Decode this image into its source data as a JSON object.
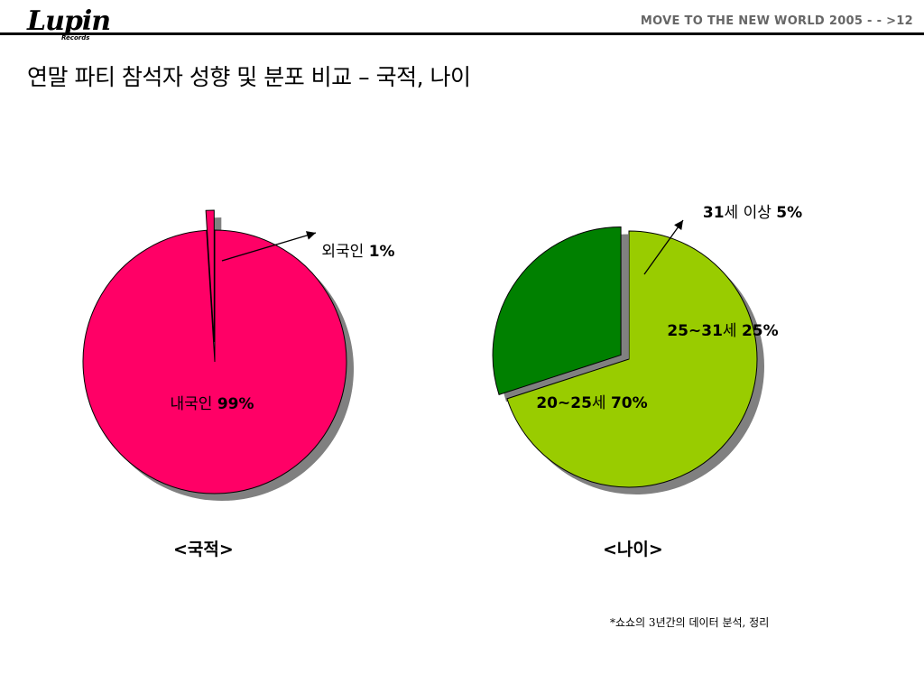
{
  "header": {
    "logo_text": "Lupin",
    "logo_sub": "Records",
    "right_title": "MOVE TO THE NEW WORLD 2005 - - >12"
  },
  "page_title": "연말 파티 참석자 성향 및 분포 비교 – 국적, 나이",
  "footnote": "*쇼쇼의 3년간의 데이터 분석, 정리",
  "colors": {
    "pink": "#ff0066",
    "light_green": "#99cc00",
    "dark_green": "#008000",
    "shadow": "#808080"
  },
  "chart_data": [
    {
      "type": "pie",
      "title": "<국적>",
      "slices": [
        {
          "name": "내국인",
          "value": 99,
          "label": "99%",
          "color": "#ff0066"
        },
        {
          "name": "외국인",
          "value": 1,
          "label": "1%",
          "color": "#ff0066",
          "exploded": true
        }
      ]
    },
    {
      "type": "pie",
      "title": "<나이>",
      "slices": [
        {
          "name": "20~25세",
          "value": 70,
          "label": "70%",
          "color": "#99cc00"
        },
        {
          "name": "25~31세",
          "value": 25,
          "label": "25%",
          "color": "#008000",
          "exploded": true
        },
        {
          "name": "31세 이상",
          "value": 5,
          "label": "5%",
          "color": "#008000",
          "exploded": true
        }
      ]
    }
  ]
}
